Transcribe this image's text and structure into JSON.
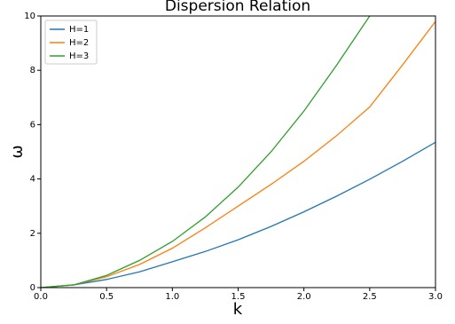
{
  "chart_data": {
    "type": "line",
    "title": "Dispersion Relation",
    "x_label": "k",
    "y_label": "ω",
    "x": [
      0,
      0.25,
      0.5,
      0.75,
      1.0,
      1.25,
      1.5,
      1.75,
      2.0,
      2.25,
      2.5,
      2.75,
      3.0
    ],
    "series": [
      {
        "name": "H=1",
        "color": "#1f77b4",
        "values": [
          0,
          0.1,
          0.3,
          0.58,
          0.95,
          1.33,
          1.76,
          2.25,
          2.79,
          3.37,
          3.99,
          4.65,
          5.35
        ]
      },
      {
        "name": "H=2",
        "color": "#ff7f0e",
        "values": [
          0,
          0.1,
          0.4,
          0.85,
          1.45,
          2.2,
          3.0,
          3.8,
          4.65,
          5.6,
          6.65,
          8.2,
          9.8
        ]
      },
      {
        "name": "H=3",
        "color": "#2ca02c",
        "values": [
          0,
          0.1,
          0.45,
          1.0,
          1.7,
          2.6,
          3.7,
          5.0,
          6.5,
          8.2,
          10.0,
          null,
          null
        ]
      }
    ],
    "xlim": [
      0,
      3
    ],
    "ylim": [
      0,
      10
    ],
    "xticks": [
      {
        "value": 0,
        "label": "0.0"
      },
      {
        "value": 0.5,
        "label": "0.5"
      },
      {
        "value": 1,
        "label": "1.0"
      },
      {
        "value": 1.5,
        "label": "1.5"
      },
      {
        "value": 2,
        "label": "2.0"
      },
      {
        "value": 2.5,
        "label": "2.5"
      },
      {
        "value": 3,
        "label": "3.0"
      }
    ],
    "yticks": [
      0,
      2,
      4,
      6,
      8,
      10
    ],
    "legend": "upper left"
  }
}
